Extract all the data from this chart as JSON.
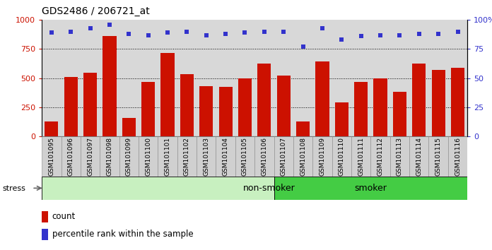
{
  "title": "GDS2486 / 206721_at",
  "categories": [
    "GSM101095",
    "GSM101096",
    "GSM101097",
    "GSM101098",
    "GSM101099",
    "GSM101100",
    "GSM101101",
    "GSM101102",
    "GSM101103",
    "GSM101104",
    "GSM101105",
    "GSM101106",
    "GSM101107",
    "GSM101108",
    "GSM101109",
    "GSM101110",
    "GSM101111",
    "GSM101112",
    "GSM101113",
    "GSM101114",
    "GSM101115",
    "GSM101116"
  ],
  "bar_values": [
    125,
    510,
    545,
    860,
    155,
    470,
    715,
    535,
    430,
    425,
    500,
    625,
    520,
    125,
    645,
    290,
    470,
    495,
    380,
    625,
    570,
    590
  ],
  "percentile_values": [
    89,
    90,
    93,
    96,
    88,
    87,
    89,
    90,
    87,
    88,
    89,
    90,
    90,
    77,
    93,
    83,
    86,
    87,
    87,
    88,
    88,
    90
  ],
  "bar_color": "#cc1100",
  "percentile_color": "#3333cc",
  "non_smoker_count": 12,
  "smoker_count": 10,
  "non_smoker_label": "non-smoker",
  "smoker_label": "smoker",
  "non_smoker_color": "#c8f0c0",
  "smoker_color": "#44cc44",
  "stress_label": "stress",
  "legend_count": "count",
  "legend_percentile": "percentile rank within the sample",
  "ylim_left": [
    0,
    1000
  ],
  "ylim_right": [
    0,
    100
  ],
  "yticks_left": [
    0,
    250,
    500,
    750,
    1000
  ],
  "yticks_right": [
    0,
    25,
    50,
    75,
    100
  ],
  "plot_bg_color": "#d8d8d8",
  "xtick_bg_color": "#d0d0d0",
  "title_fontsize": 10,
  "tick_fontsize": 6.5
}
